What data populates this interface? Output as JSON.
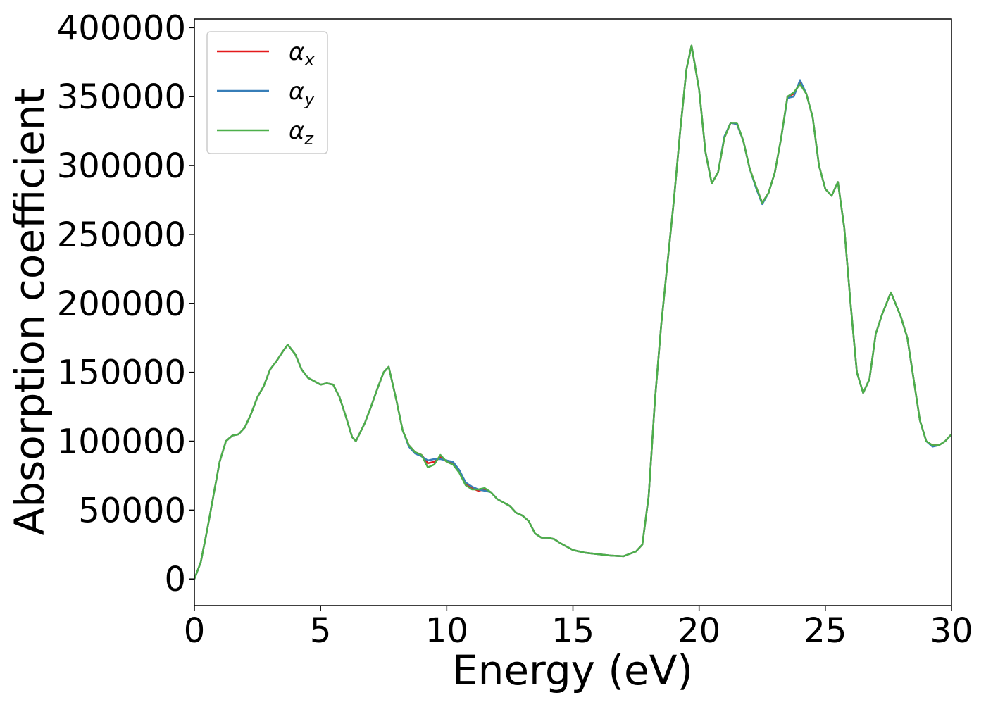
{
  "chart_data": {
    "type": "line",
    "xlabel": "Energy (eV)",
    "ylabel": "Absorption coefficient",
    "x": [
      0,
      0.25,
      0.5,
      0.75,
      1,
      1.25,
      1.5,
      1.75,
      2,
      2.25,
      2.5,
      2.75,
      3,
      3.25,
      3.5,
      3.7,
      4,
      4.25,
      4.5,
      5,
      5.25,
      5.5,
      5.75,
      6,
      6.25,
      6.4,
      6.75,
      7,
      7.25,
      7.5,
      7.7,
      8,
      8.25,
      8.5,
      8.75,
      9,
      9.25,
      9.5,
      9.75,
      10,
      10.25,
      10.5,
      10.75,
      11,
      11.25,
      11.5,
      11.75,
      12,
      12.5,
      12.75,
      13,
      13.25,
      13.5,
      13.75,
      14,
      14.25,
      14.5,
      15,
      15.5,
      16,
      16.5,
      17,
      17.5,
      17.75,
      18,
      18.25,
      18.5,
      18.75,
      19,
      19.25,
      19.5,
      19.7,
      20,
      20.25,
      20.5,
      20.75,
      21,
      21.25,
      21.5,
      21.75,
      22,
      22.25,
      22.5,
      22.75,
      23,
      23.25,
      23.5,
      23.75,
      24,
      24.25,
      24.5,
      24.75,
      25,
      25.25,
      25.5,
      25.75,
      26,
      26.25,
      26.5,
      26.75,
      27,
      27.25,
      27.6,
      28,
      28.25,
      28.5,
      28.75,
      29,
      29.25,
      29.5,
      29.75,
      30
    ],
    "series": [
      {
        "name": "αx",
        "color": "#e41a1c",
        "values": [
          0,
          12000,
          35000,
          60000,
          85000,
          100000,
          104000,
          105000,
          110000,
          120000,
          132000,
          140000,
          152000,
          158000,
          165000,
          170000,
          163000,
          152000,
          146000,
          141000,
          142000,
          141000,
          132000,
          118000,
          103000,
          100000,
          113000,
          125000,
          138000,
          150000,
          154000,
          130000,
          108000,
          97000,
          92000,
          90000,
          84000,
          85000,
          89000,
          85000,
          84000,
          78000,
          69000,
          66000,
          64000,
          65000,
          63000,
          58000,
          53000,
          48000,
          46000,
          42000,
          33000,
          30000,
          30000,
          29000,
          26000,
          21000,
          19000,
          18000,
          17000,
          16500,
          20000,
          25000,
          60000,
          130000,
          185000,
          230000,
          275000,
          325000,
          370000,
          387000,
          355000,
          310000,
          287000,
          295000,
          320000,
          331000,
          330000,
          318000,
          298000,
          285000,
          273000,
          280000,
          295000,
          320000,
          350000,
          352000,
          360000,
          352000,
          335000,
          300000,
          283000,
          278000,
          288000,
          255000,
          200000,
          150000,
          135000,
          145000,
          178000,
          192000,
          208000,
          190000,
          175000,
          145000,
          115000,
          100000,
          97000,
          97000,
          100000,
          105000
        ]
      },
      {
        "name": "αy",
        "color": "#377eb8",
        "values": [
          0,
          12000,
          35000,
          60000,
          85000,
          100000,
          104000,
          105000,
          110000,
          120000,
          132000,
          140000,
          152000,
          158000,
          165000,
          170000,
          163000,
          152000,
          146000,
          141000,
          142000,
          141000,
          132000,
          118000,
          103000,
          100000,
          113000,
          125000,
          138000,
          150000,
          154000,
          130000,
          108000,
          96000,
          91000,
          89000,
          86000,
          87000,
          87000,
          86000,
          85000,
          79000,
          70000,
          67000,
          65000,
          64000,
          63000,
          58000,
          53000,
          48000,
          46000,
          42000,
          33000,
          30000,
          30000,
          29000,
          26000,
          21000,
          19000,
          18000,
          17000,
          16500,
          20000,
          25000,
          60000,
          130000,
          185000,
          230000,
          275000,
          325000,
          370000,
          387000,
          355000,
          310000,
          287000,
          295000,
          321000,
          331000,
          330000,
          318000,
          298000,
          284000,
          272000,
          280000,
          295000,
          320000,
          349000,
          350000,
          362000,
          352000,
          335000,
          300000,
          283000,
          278000,
          288000,
          255000,
          200000,
          150000,
          135000,
          145000,
          178000,
          192000,
          208000,
          190000,
          175000,
          145000,
          115000,
          100000,
          96000,
          97000,
          100000,
          105000
        ]
      },
      {
        "name": "αz",
        "color": "#4daf4a",
        "values": [
          0,
          12000,
          35000,
          60000,
          85000,
          100000,
          104000,
          105000,
          110000,
          120000,
          132000,
          140000,
          152000,
          158000,
          165000,
          170000,
          163000,
          152000,
          146000,
          141000,
          142000,
          141000,
          132000,
          118000,
          103000,
          100000,
          113000,
          125000,
          138000,
          150000,
          154000,
          130000,
          108000,
          97000,
          92000,
          90000,
          81000,
          83000,
          90000,
          85000,
          83000,
          77000,
          68000,
          65000,
          65000,
          66000,
          63000,
          58000,
          53000,
          48000,
          46000,
          42000,
          33000,
          30000,
          30000,
          29000,
          26000,
          21000,
          19000,
          18000,
          17000,
          16500,
          20000,
          25000,
          60000,
          130000,
          185000,
          230000,
          275000,
          325000,
          370000,
          387000,
          355000,
          310000,
          287000,
          295000,
          320000,
          331000,
          331000,
          318000,
          298000,
          285000,
          273000,
          280000,
          295000,
          320000,
          350000,
          353000,
          359000,
          352000,
          335000,
          300000,
          283000,
          278000,
          288000,
          255000,
          200000,
          150000,
          135000,
          145000,
          178000,
          192000,
          208000,
          190000,
          175000,
          145000,
          115000,
          100000,
          97000,
          97000,
          100000,
          105000
        ]
      }
    ],
    "xlim": [
      0,
      30
    ],
    "xticks": [
      0,
      5,
      10,
      15,
      20,
      25,
      30
    ],
    "ylim": [
      -19300,
      406300
    ],
    "yticks": [
      0,
      50000,
      100000,
      150000,
      200000,
      250000,
      300000,
      350000,
      400000
    ],
    "legend": "upper left"
  }
}
